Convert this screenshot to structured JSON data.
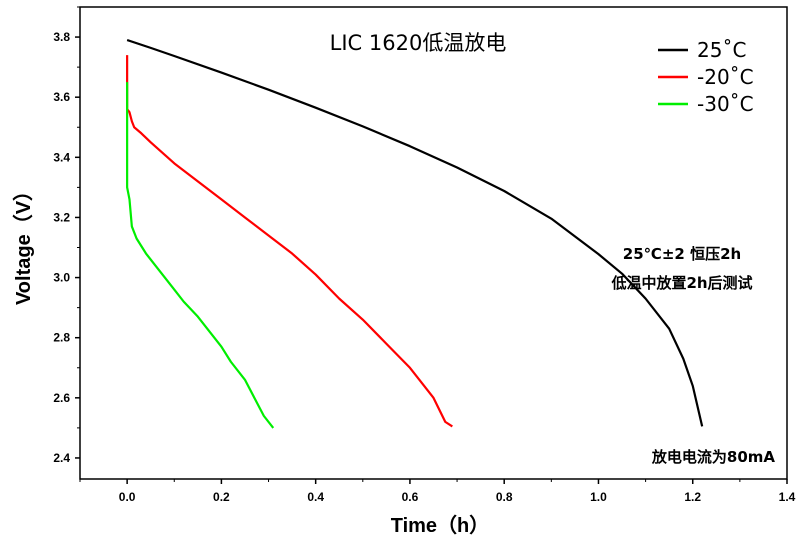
{
  "chart_data": {
    "type": "line",
    "title": "LIC 1620低温放电",
    "xlabel": "Time（h）",
    "ylabel": "Voltage（V）",
    "xlim": [
      -0.1,
      1.4
    ],
    "ylim": [
      2.33,
      3.9
    ],
    "xticks": [
      0.0,
      0.2,
      0.4,
      0.6,
      0.8,
      1.0,
      1.2,
      1.4
    ],
    "xtick_labels": [
      "0.0",
      "0.2",
      "0.4",
      "0.6",
      "0.8",
      "1.0",
      "1.2",
      "1.4"
    ],
    "yticks": [
      2.4,
      2.6,
      2.8,
      3.0,
      3.2,
      3.4,
      3.6,
      3.8
    ],
    "ytick_labels": [
      "2.4",
      "2.6",
      "2.8",
      "3.0",
      "3.2",
      "3.4",
      "3.6",
      "3.8"
    ],
    "grid": false,
    "legend_position": "top-right",
    "series": [
      {
        "name": "25˚C",
        "color": "#000000",
        "x": [
          0.0,
          0.05,
          0.1,
          0.2,
          0.3,
          0.4,
          0.5,
          0.6,
          0.7,
          0.8,
          0.9,
          1.0,
          1.05,
          1.1,
          1.15,
          1.18,
          1.2,
          1.22
        ],
        "y": [
          3.79,
          3.764,
          3.737,
          3.682,
          3.625,
          3.565,
          3.503,
          3.437,
          3.366,
          3.288,
          3.196,
          3.078,
          3.013,
          2.93,
          2.83,
          2.73,
          2.64,
          2.505
        ]
      },
      {
        "name": "-20˚C",
        "color": "#ff0000",
        "x": [
          0.0,
          0.0,
          0.0,
          0.005,
          0.01,
          0.015,
          0.03,
          0.05,
          0.1,
          0.15,
          0.2,
          0.25,
          0.3,
          0.35,
          0.4,
          0.45,
          0.5,
          0.55,
          0.6,
          0.65,
          0.675,
          0.69
        ],
        "y": [
          3.74,
          3.6,
          3.56,
          3.55,
          3.52,
          3.5,
          3.48,
          3.45,
          3.38,
          3.32,
          3.26,
          3.2,
          3.14,
          3.08,
          3.01,
          2.93,
          2.86,
          2.78,
          2.7,
          2.6,
          2.52,
          2.505
        ]
      },
      {
        "name": "-30˚C",
        "color": "#00ee00",
        "x": [
          0.0,
          0.0,
          0.0,
          0.005,
          0.01,
          0.02,
          0.04,
          0.06,
          0.08,
          0.1,
          0.12,
          0.15,
          0.18,
          0.2,
          0.22,
          0.25,
          0.27,
          0.29,
          0.31
        ],
        "y": [
          3.65,
          3.33,
          3.3,
          3.26,
          3.17,
          3.13,
          3.08,
          3.04,
          3.0,
          2.96,
          2.92,
          2.87,
          2.81,
          2.77,
          2.72,
          2.66,
          2.6,
          2.54,
          2.5
        ]
      }
    ],
    "annotations": [
      "25℃±2 恒压2h",
      "低温中放置2h后测试",
      "放电电流为80mA"
    ]
  }
}
